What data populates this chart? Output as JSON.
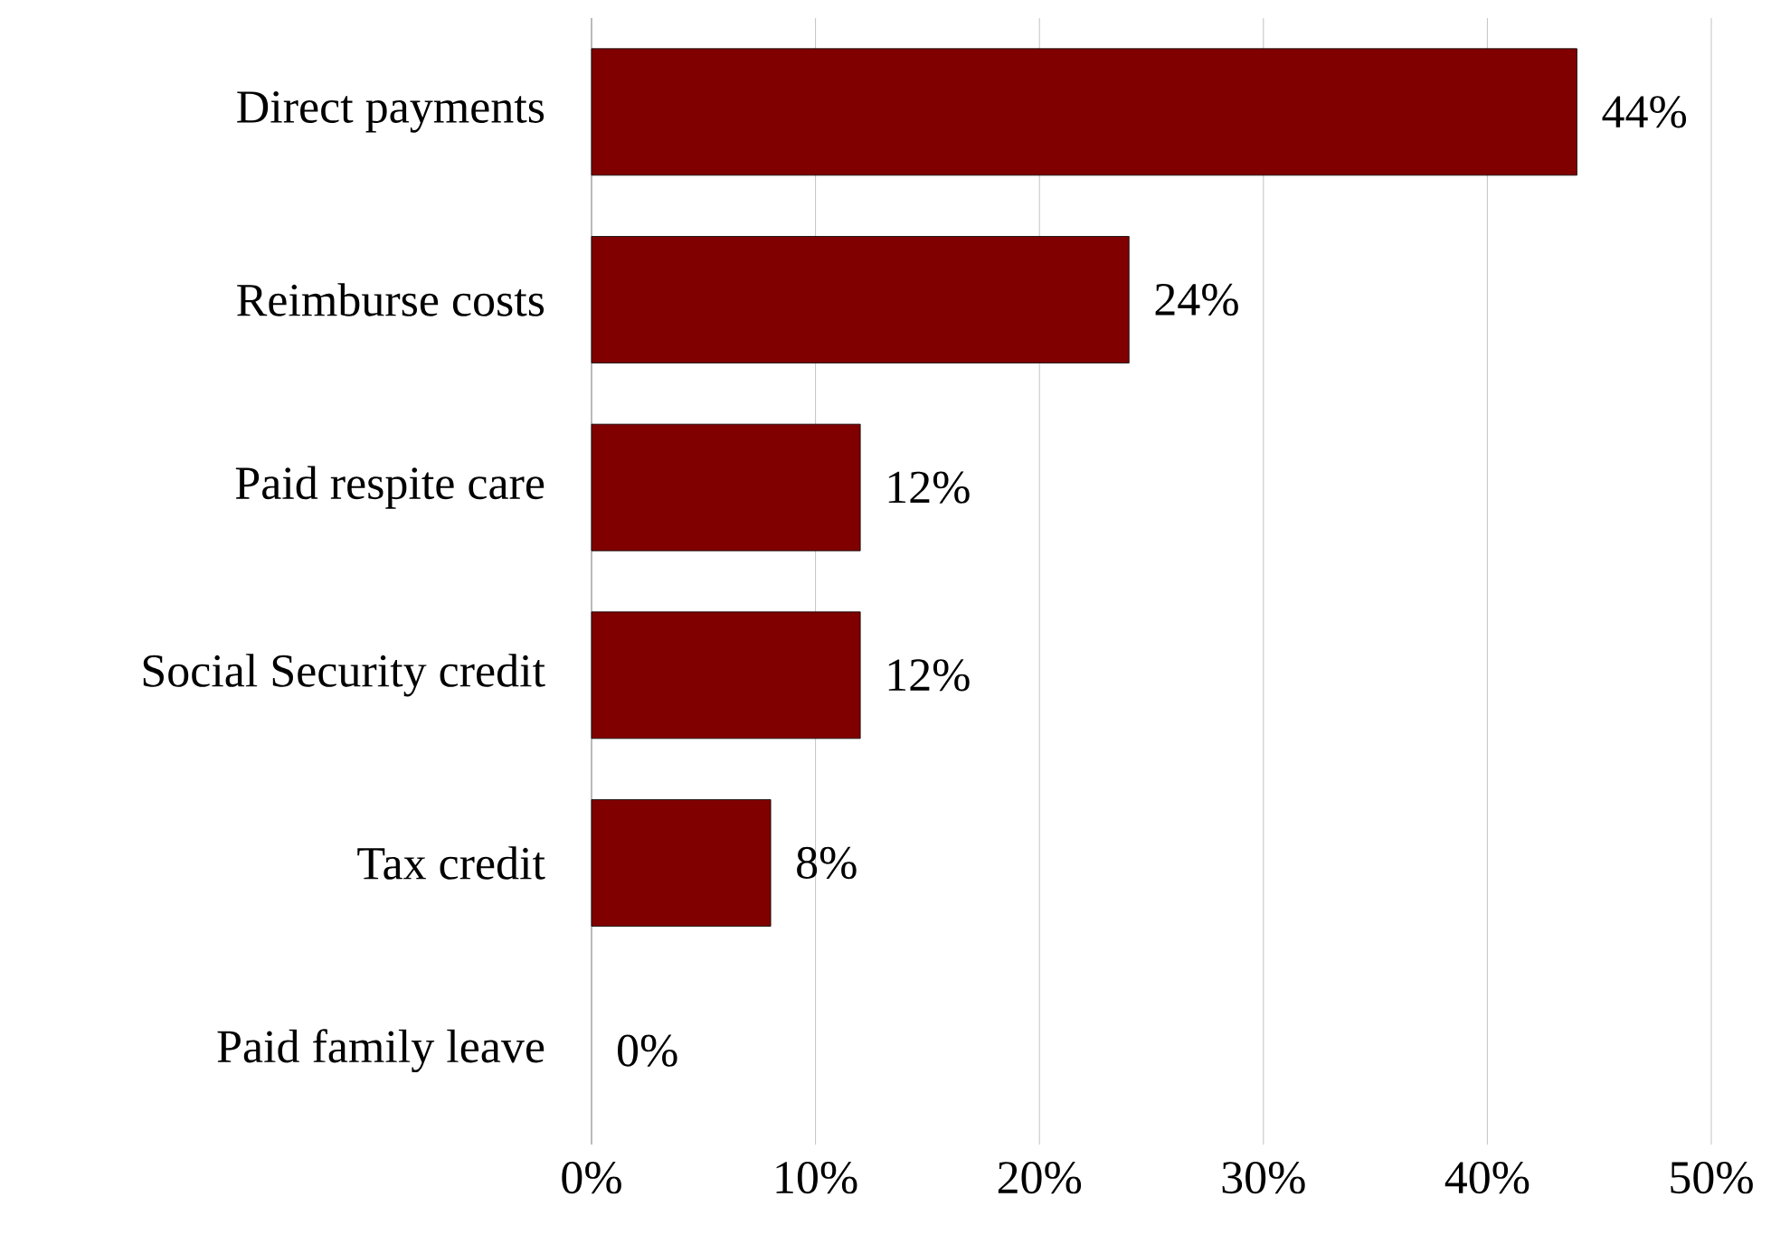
{
  "chart_data": {
    "type": "bar",
    "orientation": "horizontal",
    "categories": [
      "Direct payments",
      "Reimburse costs",
      "Paid respite care",
      "Social Security credit",
      "Tax credit",
      "Paid family leave"
    ],
    "values": [
      44,
      24,
      12,
      12,
      8,
      0
    ],
    "value_labels": [
      "44%",
      "24%",
      "12%",
      "12%",
      "8%",
      "0%"
    ],
    "color": "#800000",
    "xlim": [
      0,
      50
    ],
    "xticks": [
      {
        "value": 0,
        "label": "0%"
      },
      {
        "value": 10,
        "label": "10%"
      },
      {
        "value": 20,
        "label": "20%"
      },
      {
        "value": 30,
        "label": "30%"
      },
      {
        "value": 40,
        "label": "40%"
      },
      {
        "value": 50,
        "label": "50%"
      }
    ],
    "grid": "x"
  }
}
